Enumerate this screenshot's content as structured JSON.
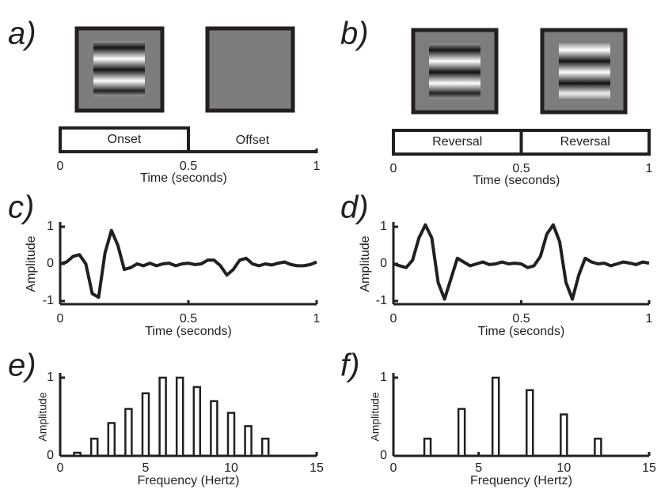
{
  "timelines": [
    {
      "panel": "a)",
      "xlabel": "Time (seconds)",
      "xlim": [
        0,
        1
      ],
      "xticks": [
        0,
        0.5,
        1
      ],
      "segments": [
        {
          "label": "Onset",
          "start": 0,
          "end": 0.5,
          "boxed": true
        },
        {
          "label": "Offset",
          "start": 0.5,
          "end": 1,
          "boxed": false
        }
      ]
    },
    {
      "panel": "b)",
      "xlabel": "Time (seconds)",
      "xlim": [
        0,
        1
      ],
      "xticks": [
        0,
        0.5,
        1
      ],
      "segments": [
        {
          "label": "Reversal",
          "start": 0,
          "end": 0.5,
          "boxed": true
        },
        {
          "label": "Reversal",
          "start": 0.5,
          "end": 1,
          "boxed": true
        }
      ]
    }
  ],
  "chart_data": [
    {
      "type": "line",
      "panel": "c)",
      "xlabel": "Time (seconds)",
      "ylabel": "Amplitude",
      "color": "#231f20",
      "x": [
        0,
        0.025,
        0.05,
        0.075,
        0.1,
        0.125,
        0.15,
        0.175,
        0.2,
        0.225,
        0.25,
        0.275,
        0.3,
        0.325,
        0.35,
        0.375,
        0.4,
        0.425,
        0.45,
        0.475,
        0.5,
        0.525,
        0.55,
        0.575,
        0.6,
        0.625,
        0.65,
        0.675,
        0.7,
        0.725,
        0.75,
        0.775,
        0.8,
        0.825,
        0.85,
        0.875,
        0.9,
        0.925,
        0.95,
        0.975,
        1
      ],
      "values": [
        0,
        0.05,
        0.2,
        0.25,
        0,
        -0.8,
        -0.9,
        0.3,
        0.9,
        0.5,
        -0.15,
        -0.1,
        0,
        -0.05,
        0.02,
        -0.05,
        0,
        0.02,
        -0.05,
        0,
        0.02,
        -0.02,
        0,
        0.1,
        0.1,
        -0.05,
        -0.3,
        -0.15,
        0.1,
        0.15,
        0,
        -0.05,
        0,
        -0.03,
        0.02,
        0.05,
        -0.02,
        -0.05,
        -0.05,
        -0.02,
        0.05
      ],
      "xlim": [
        0,
        1
      ],
      "ylim": [
        -1,
        1
      ],
      "xticks": [
        0,
        0.5,
        1
      ],
      "yticks": [
        -1,
        0,
        1
      ]
    },
    {
      "type": "line",
      "panel": "d)",
      "xlabel": "Time (seconds)",
      "ylabel": "Amplitude",
      "color": "#231f20",
      "x": [
        0,
        0.025,
        0.05,
        0.075,
        0.1,
        0.125,
        0.15,
        0.175,
        0.2,
        0.225,
        0.25,
        0.275,
        0.3,
        0.325,
        0.35,
        0.375,
        0.4,
        0.425,
        0.45,
        0.475,
        0.5,
        0.525,
        0.55,
        0.575,
        0.6,
        0.625,
        0.65,
        0.675,
        0.7,
        0.725,
        0.75,
        0.775,
        0.8,
        0.825,
        0.85,
        0.875,
        0.9,
        0.925,
        0.95,
        0.975,
        1
      ],
      "values": [
        0,
        -0.05,
        -0.1,
        0.1,
        0.7,
        1.05,
        0.7,
        -0.5,
        -0.95,
        -0.4,
        0.15,
        0.05,
        -0.05,
        0,
        0.05,
        -0.02,
        0,
        0.05,
        0,
        0.02,
        0,
        -0.1,
        -0.05,
        0.2,
        0.8,
        1.05,
        0.6,
        -0.5,
        -0.95,
        -0.3,
        0.15,
        0.05,
        0,
        0.02,
        -0.05,
        0,
        0.05,
        0.02,
        -0.02,
        0.05,
        0.02
      ],
      "xlim": [
        0,
        1
      ],
      "ylim": [
        -1,
        1
      ],
      "xticks": [
        0,
        0.5,
        1
      ],
      "yticks": [
        -1,
        0,
        1
      ]
    },
    {
      "type": "bar",
      "panel": "e)",
      "xlabel": "Frequency (Hertz)",
      "ylabel": "Amplitude",
      "color": "#ffffff",
      "x": [
        1,
        2,
        3,
        4,
        5,
        6,
        7,
        8,
        9,
        10,
        11,
        12
      ],
      "values": [
        0.04,
        0.22,
        0.42,
        0.6,
        0.8,
        1.0,
        1.0,
        0.88,
        0.7,
        0.55,
        0.38,
        0.22
      ],
      "xlim": [
        0,
        15
      ],
      "ylim": [
        0,
        1
      ],
      "xticks": [
        0,
        5,
        10,
        15
      ],
      "yticks": [
        0,
        1
      ]
    },
    {
      "type": "bar",
      "panel": "f)",
      "xlabel": "Frequency (Hertz)",
      "ylabel": "Amplitude",
      "color": "#ffffff",
      "x": [
        2,
        4,
        6,
        8,
        10,
        12
      ],
      "values": [
        0.22,
        0.6,
        1.0,
        0.84,
        0.53,
        0.22
      ],
      "xlim": [
        0,
        15
      ],
      "ylim": [
        0,
        1
      ],
      "xticks": [
        0,
        5,
        10,
        15
      ],
      "yticks": [
        0,
        1
      ]
    }
  ]
}
